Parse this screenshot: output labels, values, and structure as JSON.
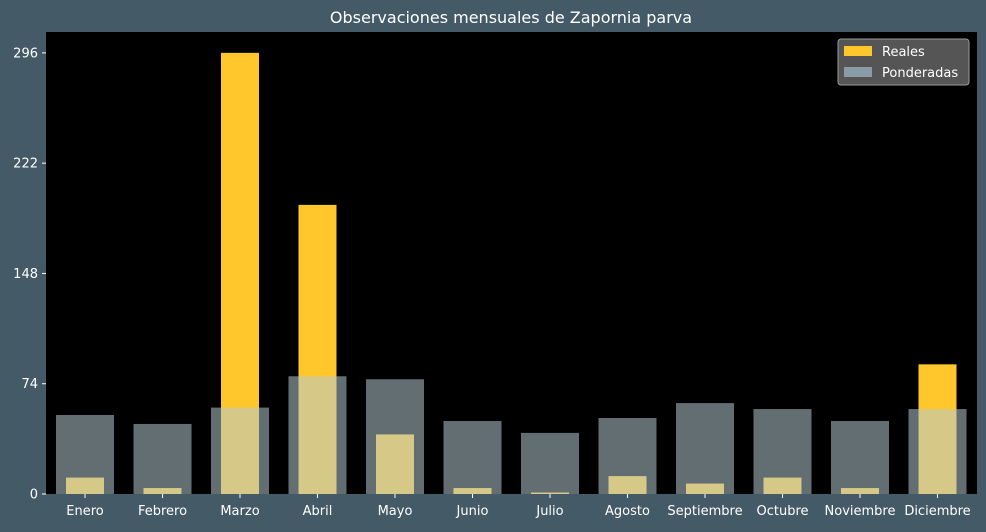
{
  "chart_data": {
    "type": "bar",
    "title": "Observaciones mensuales de Zapornia parva",
    "xlabel": "",
    "ylabel": "",
    "categories": [
      "Enero",
      "Febrero",
      "Marzo",
      "Abril",
      "Mayo",
      "Junio",
      "Julio",
      "Agosto",
      "Septiembre",
      "Octubre",
      "Noviembre",
      "Diciembre"
    ],
    "series": [
      {
        "name": "Reales",
        "values": [
          11,
          4,
          296,
          194,
          40,
          4,
          1,
          12,
          7,
          11,
          4,
          87
        ],
        "color": "#ffc72c"
      },
      {
        "name": "Ponderadas",
        "values": [
          53,
          47,
          58,
          79,
          77,
          49,
          41,
          51,
          61,
          57,
          49,
          57
        ],
        "color": "#b4c8d2"
      }
    ],
    "yticks": [
      0,
      74,
      148,
      222,
      296
    ],
    "ylim": [
      0,
      310
    ],
    "grid": false,
    "legend_position": "top-right",
    "colors": {
      "figure_background": "#445a66",
      "plot_background": "#000000",
      "text": "#ffffff"
    }
  }
}
